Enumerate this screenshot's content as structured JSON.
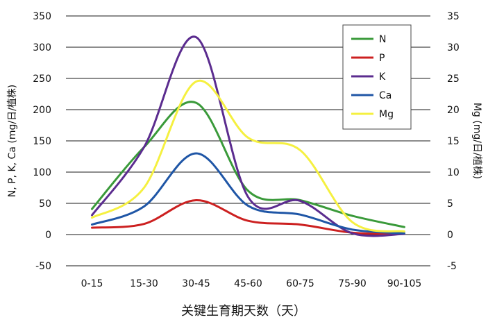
{
  "chart_data": {
    "type": "line",
    "categories": [
      "0-15",
      "15-30",
      "30-45",
      "45-60",
      "60-75",
      "75-90",
      "90-105"
    ],
    "xlabel": "关键生育期天数（天）",
    "ylabel_left": "N, P, K, Ca (mg/日/植株)",
    "ylabel_right": "Mg (mg/日/植株)",
    "ylim_left": [
      -50,
      350
    ],
    "yticks_left": [
      350,
      300,
      250,
      200,
      150,
      100,
      50,
      0,
      -50
    ],
    "ylim_right": [
      -5,
      35
    ],
    "yticks_right": [
      35,
      30,
      25,
      20,
      15,
      10,
      5,
      0,
      -5
    ],
    "grid": "horizontal",
    "legend_position": "top-right",
    "series": [
      {
        "name": "N",
        "color": "#3a9a3a",
        "axis": "left",
        "points": [
          [
            0,
            41
          ],
          [
            1,
            140
          ],
          [
            2,
            211
          ],
          [
            3,
            70
          ],
          [
            4,
            55
          ],
          [
            5,
            30
          ],
          [
            6,
            12
          ]
        ]
      },
      {
        "name": "P",
        "color": "#cc2020",
        "axis": "left",
        "points": [
          [
            0,
            11
          ],
          [
            1,
            17
          ],
          [
            2,
            55
          ],
          [
            3,
            22
          ],
          [
            4,
            16
          ],
          [
            5,
            3
          ],
          [
            6,
            1
          ]
        ]
      },
      {
        "name": "K",
        "color": "#5b2c8f",
        "axis": "left",
        "points": [
          [
            0,
            31
          ],
          [
            1,
            140
          ],
          [
            2,
            316
          ],
          [
            3,
            60
          ],
          [
            4,
            54
          ],
          [
            5,
            2
          ],
          [
            6,
            1
          ]
        ]
      },
      {
        "name": "Ca",
        "color": "#1f56a6",
        "axis": "left",
        "points": [
          [
            0,
            16
          ],
          [
            1,
            45
          ],
          [
            2,
            130
          ],
          [
            3,
            46
          ],
          [
            4,
            32
          ],
          [
            5,
            8
          ],
          [
            6,
            2
          ]
        ]
      },
      {
        "name": "Mg",
        "color": "#f5f040",
        "axis": "right",
        "points": [
          [
            0,
            2.7
          ],
          [
            1,
            7.5
          ],
          [
            2,
            24.5
          ],
          [
            3,
            15.5
          ],
          [
            4,
            13.5
          ],
          [
            5,
            2
          ],
          [
            6,
            0.5
          ]
        ]
      }
    ]
  }
}
